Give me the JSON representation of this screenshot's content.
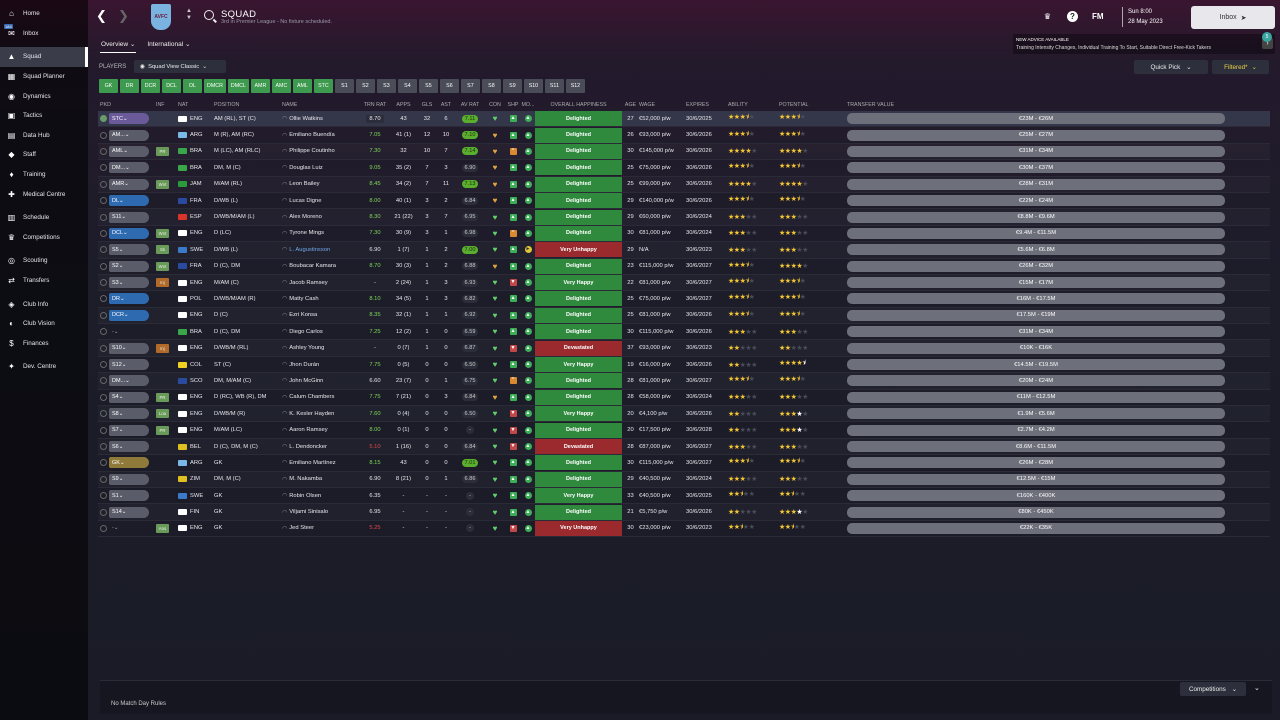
{
  "sidebar": {
    "items": [
      {
        "label": "Home",
        "icon": "home-icon",
        "glyph": "⌂"
      },
      {
        "label": "Inbox",
        "icon": "inbox-icon",
        "glyph": "✉"
      },
      {
        "label": "Squad",
        "icon": "shirt-icon",
        "glyph": "▲",
        "active": true
      },
      {
        "label": "Squad Planner",
        "icon": "planner-icon",
        "glyph": "▦"
      },
      {
        "label": "Dynamics",
        "icon": "dynamics-icon",
        "glyph": "◉"
      },
      {
        "label": "Tactics",
        "icon": "tactics-icon",
        "glyph": "▣"
      },
      {
        "label": "Data Hub",
        "icon": "data-icon",
        "glyph": "▤"
      },
      {
        "label": "Staff",
        "icon": "staff-icon",
        "glyph": "◆"
      },
      {
        "label": "Training",
        "icon": "training-icon",
        "glyph": "♦"
      },
      {
        "label": "Medical Centre",
        "icon": "medical-icon",
        "glyph": "✚"
      },
      {
        "label": "Schedule",
        "icon": "calendar-icon",
        "glyph": "▥"
      },
      {
        "label": "Competitions",
        "icon": "trophy-icon",
        "glyph": "♛"
      },
      {
        "label": "Scouting",
        "icon": "scouting-icon",
        "glyph": "◎"
      },
      {
        "label": "Transfers",
        "icon": "transfers-icon",
        "glyph": "⇄"
      },
      {
        "label": "Club Info",
        "icon": "club-info-icon",
        "glyph": "◈"
      },
      {
        "label": "Club Vision",
        "icon": "club-vision-icon",
        "glyph": "◐"
      },
      {
        "label": "Finances",
        "icon": "finances-icon",
        "glyph": "$"
      },
      {
        "label": "Dev. Centre",
        "icon": "dev-centre-icon",
        "glyph": "✦"
      }
    ],
    "inbox_badge": "184"
  },
  "header": {
    "title": "SQUAD",
    "subtitle": "3rd in Premier League - No fixture scheduled.",
    "club_initials": "AVFC",
    "time": "Sun 8:00",
    "date": "28 May 2023",
    "fm_label": "FM",
    "inbox_label": "Inbox"
  },
  "advice": {
    "title": "NEW ADVICE AVAILABLE",
    "text": "Training Intensity Changes, Individual Training To Start, Suitable Direct Free-Kick Takers",
    "badge": "5"
  },
  "tabs": [
    {
      "label": "Overview",
      "active": true
    },
    {
      "label": "International",
      "active": false
    }
  ],
  "players_label": "PLAYERS",
  "view_select": "Squad View Classic",
  "quick_pick": "Quick Pick",
  "filtered": "Filtered*",
  "position_filters": [
    {
      "label": "GK",
      "on": true
    },
    {
      "label": "DR",
      "on": true
    },
    {
      "label": "DCR",
      "on": true
    },
    {
      "label": "DCL",
      "on": true
    },
    {
      "label": "DL",
      "on": true
    },
    {
      "label": "DMCR",
      "on": true
    },
    {
      "label": "DMCL",
      "on": true
    },
    {
      "label": "AMR",
      "on": true
    },
    {
      "label": "AMC",
      "on": true
    },
    {
      "label": "AML",
      "on": true
    },
    {
      "label": "STC",
      "on": true
    },
    {
      "label": "S1",
      "on": false
    },
    {
      "label": "S2",
      "on": false
    },
    {
      "label": "S3",
      "on": false
    },
    {
      "label": "S4",
      "on": false
    },
    {
      "label": "S5",
      "on": false
    },
    {
      "label": "S6",
      "on": false
    },
    {
      "label": "S7",
      "on": false
    },
    {
      "label": "S8",
      "on": false
    },
    {
      "label": "S9",
      "on": false
    },
    {
      "label": "S10",
      "on": false
    },
    {
      "label": "S11",
      "on": false
    },
    {
      "label": "S12",
      "on": false
    }
  ],
  "columns": [
    "PKD",
    "INF",
    "NAT",
    "POSITION",
    "NAME",
    "TRN RAT",
    "APPS",
    "GLS",
    "AST",
    "AV RAT",
    "CON",
    "SHP",
    "MO...",
    "OVERALL HAPPINESS",
    "AGE",
    "WAGE",
    "EXPIRES",
    "ABILITY",
    "POTENTIAL",
    "TRANSFER VALUE"
  ],
  "players": [
    {
      "pkd": "STC",
      "pk": "stc",
      "inf": "",
      "nat": "ENG",
      "flag": "#ffffff",
      "pos": "AM (RL), ST (C)",
      "name": "Ollie Watkins",
      "trn": "8.70",
      "tb": true,
      "tc": "#e8e8ec",
      "apps": "43",
      "gls": "32",
      "ast": "6",
      "avr": "7.11",
      "ag": true,
      "con": "g",
      "shp": "g",
      "mor": "g",
      "hap": "Delighted",
      "hg": true,
      "age": "27",
      "wage": "€52,000 p/w",
      "exp": "30/6/2025",
      "abi": 3.5,
      "pot": 3.5,
      "val": "€23M - €26M",
      "sel": true
    },
    {
      "pkd": "AM...",
      "pk": "grey",
      "inf": "",
      "nat": "ARG",
      "flag": "#7ab8e8",
      "pos": "M (R), AM (RC)",
      "name": "Emiliano Buendía",
      "trn": "7.05",
      "tb": false,
      "tc": "#7ed957",
      "apps": "41 (1)",
      "gls": "12",
      "ast": "10",
      "avr": "7.10",
      "ag": true,
      "con": "o",
      "shp": "g",
      "mor": "g",
      "hap": "Delighted",
      "hg": true,
      "age": "26",
      "wage": "€93,000 p/w",
      "exp": "30/6/2026",
      "abi": 3.5,
      "pot": 3.5,
      "val": "€25M - €27M"
    },
    {
      "pkd": "AML",
      "pk": "grey",
      "inf": "PR",
      "nat": "BRA",
      "flag": "#3aa64a",
      "pos": "M (LC), AM (RLC)",
      "name": "Philippe Coutinho",
      "trn": "7.30",
      "tb": false,
      "tc": "#7ed957",
      "apps": "32",
      "gls": "10",
      "ast": "7",
      "avr": "7.14",
      "ag": true,
      "con": "o",
      "shp": "o",
      "mor": "g",
      "hap": "Delighted",
      "hg": true,
      "age": "30",
      "wage": "€145,000 p/w",
      "exp": "30/6/2026",
      "abi": 4,
      "pot": 4,
      "val": "€31M - €34M"
    },
    {
      "pkd": "DM...",
      "pk": "grey",
      "inf": "",
      "nat": "BRA",
      "flag": "#3aa64a",
      "pos": "DM, M (C)",
      "name": "Douglas Luiz",
      "trn": "9.05",
      "tb": false,
      "tc": "#7ed957",
      "apps": "35 (2)",
      "gls": "7",
      "ast": "3",
      "avr": "6.90",
      "ag": false,
      "con": "o",
      "shp": "g",
      "mor": "g",
      "hap": "Delighted",
      "hg": true,
      "age": "25",
      "wage": "€75,000 p/w",
      "exp": "30/6/2026",
      "abi": 3.5,
      "pot": 3.5,
      "val": "€30M - €37M"
    },
    {
      "pkd": "AMR",
      "pk": "grey",
      "inf": "Wnt",
      "nat": "JAM",
      "flag": "#2a9a3a",
      "pos": "M/AM (RL)",
      "name": "Leon Bailey",
      "trn": "8.45",
      "tb": false,
      "tc": "#7ed957",
      "apps": "34 (2)",
      "gls": "7",
      "ast": "11",
      "avr": "7.13",
      "ag": true,
      "con": "o",
      "shp": "g",
      "mor": "g",
      "hap": "Delighted",
      "hg": true,
      "age": "25",
      "wage": "€99,000 p/w",
      "exp": "30/6/2026",
      "abi": 4,
      "pot": 4,
      "val": "€28M - €31M"
    },
    {
      "pkd": "DL",
      "pk": "blue",
      "inf": "",
      "nat": "FRA",
      "flag": "#2a4aa0",
      "pos": "D/WB (L)",
      "name": "Lucas Digne",
      "trn": "8.00",
      "tb": false,
      "tc": "#7ed957",
      "apps": "40 (1)",
      "gls": "3",
      "ast": "2",
      "avr": "6.84",
      "ag": false,
      "con": "o",
      "shp": "g",
      "mor": "g",
      "hap": "Delighted",
      "hg": true,
      "age": "29",
      "wage": "€140,000 p/w",
      "exp": "30/6/2026",
      "abi": 3.5,
      "pot": 3.5,
      "val": "€22M - €24M"
    },
    {
      "pkd": "S11",
      "pk": "grey",
      "inf": "",
      "nat": "ESP",
      "flag": "#d8342a",
      "pos": "D/WB/M/AM (L)",
      "name": "Álex Moreno",
      "trn": "8.30",
      "tb": false,
      "tc": "#7ed957",
      "apps": "21 (22)",
      "gls": "3",
      "ast": "7",
      "avr": "6.95",
      "ag": false,
      "con": "g",
      "shp": "g",
      "mor": "g",
      "hap": "Delighted",
      "hg": true,
      "age": "29",
      "wage": "€60,000 p/w",
      "exp": "30/6/2024",
      "abi": 3,
      "pot": 3,
      "val": "€8.8M - €9.6M"
    },
    {
      "pkd": "DCL",
      "pk": "blue",
      "inf": "Wnt",
      "nat": "ENG",
      "flag": "#ffffff",
      "pos": "D (LC)",
      "name": "Tyrone Mings",
      "trn": "7.30",
      "tb": false,
      "tc": "#7ed957",
      "apps": "30 (9)",
      "gls": "3",
      "ast": "1",
      "avr": "6.98",
      "ag": false,
      "con": "g",
      "shp": "o",
      "mor": "g",
      "hap": "Delighted",
      "hg": true,
      "age": "30",
      "wage": "€81,000 p/w",
      "exp": "30/6/2024",
      "abi": 3,
      "pot": 3,
      "val": "€9.4M - €11.5M"
    },
    {
      "pkd": "S5",
      "pk": "grey",
      "inf": "Sk",
      "nat": "SWE",
      "flag": "#3a7ac8",
      "pos": "D/WB (L)",
      "name": "L. Augustinsson",
      "trn": "6.90",
      "tb": false,
      "tc": "#e8e8ec",
      "apps": "1 (7)",
      "gls": "1",
      "ast": "2",
      "avr": "7.00",
      "ag": true,
      "con": "g",
      "shp": "g",
      "mor": "y",
      "hap": "Very Unhappy",
      "hg": false,
      "age": "29",
      "wage": "N/A",
      "exp": "30/6/2023",
      "abi": 3,
      "pot": 3,
      "val": "€5.6M - €6.8M",
      "link": true
    },
    {
      "pkd": "S2",
      "pk": "grey",
      "inf": "Wnt",
      "nat": "FRA",
      "flag": "#2a4aa0",
      "pos": "D (C), DM",
      "name": "Boubacar Kamara",
      "trn": "8.70",
      "tb": false,
      "tc": "#7ed957",
      "apps": "30 (3)",
      "gls": "1",
      "ast": "2",
      "avr": "6.88",
      "ag": false,
      "con": "o",
      "shp": "g",
      "mor": "g",
      "hap": "Delighted",
      "hg": true,
      "age": "23",
      "wage": "€115,000 p/w",
      "exp": "30/6/2027",
      "abi": 3.5,
      "pot": 4,
      "val": "€26M - €32M"
    },
    {
      "pkd": "S3",
      "pk": "grey",
      "inf": "Inj",
      "inf_o": true,
      "nat": "ENG",
      "flag": "#ffffff",
      "pos": "M/AM (C)",
      "name": "Jacob Ramsey",
      "trn": "-",
      "tb": false,
      "tc": "#e8e8ec",
      "apps": "2 (24)",
      "gls": "1",
      "ast": "3",
      "avr": "6.93",
      "ag": false,
      "con": "g",
      "shp": "r",
      "mor": "g",
      "hap": "Very Happy",
      "hg": true,
      "age": "22",
      "wage": "€81,000 p/w",
      "exp": "30/6/2027",
      "abi": 3.5,
      "pot": 3.5,
      "val": "€15M - €17M"
    },
    {
      "pkd": "DR",
      "pk": "blue",
      "inf": "",
      "nat": "POL",
      "flag": "#ffffff",
      "pos": "D/WB/M/AM (R)",
      "name": "Matty Cash",
      "trn": "8.10",
      "tb": false,
      "tc": "#7ed957",
      "apps": "34 (5)",
      "gls": "1",
      "ast": "3",
      "avr": "6.82",
      "ag": false,
      "con": "g",
      "shp": "g",
      "mor": "g",
      "hap": "Delighted",
      "hg": true,
      "age": "25",
      "wage": "€75,000 p/w",
      "exp": "30/6/2027",
      "abi": 3.5,
      "pot": 3.5,
      "val": "€16M - €17.5M"
    },
    {
      "pkd": "DCR",
      "pk": "blue",
      "inf": "",
      "nat": "ENG",
      "flag": "#ffffff",
      "pos": "D (C)",
      "name": "Ezri Konsa",
      "trn": "8.35",
      "tb": false,
      "tc": "#7ed957",
      "apps": "32 (1)",
      "gls": "1",
      "ast": "1",
      "avr": "6.92",
      "ag": false,
      "con": "g",
      "shp": "g",
      "mor": "g",
      "hap": "Delighted",
      "hg": true,
      "age": "25",
      "wage": "€81,000 p/w",
      "exp": "30/6/2026",
      "abi": 3.5,
      "pot": 3.5,
      "val": "€17.5M - €19M"
    },
    {
      "pkd": "-",
      "pk": "empty",
      "inf": "",
      "nat": "BRA",
      "flag": "#3aa64a",
      "pos": "D (C), DM",
      "name": "Diego Carlos",
      "trn": "7.25",
      "tb": false,
      "tc": "#7ed957",
      "apps": "12 (2)",
      "gls": "1",
      "ast": "0",
      "avr": "6.59",
      "ag": false,
      "con": "g",
      "shp": "g",
      "mor": "g",
      "hap": "Delighted",
      "hg": true,
      "age": "30",
      "wage": "€115,000 p/w",
      "exp": "30/6/2026",
      "abi": 3,
      "pot": 3,
      "val": "€31M - €34M"
    },
    {
      "pkd": "S10",
      "pk": "grey",
      "inf": "Inj",
      "inf_o": true,
      "nat": "ENG",
      "flag": "#ffffff",
      "pos": "D/WB/M (RL)",
      "name": "Ashley Young",
      "trn": "-",
      "tb": false,
      "tc": "#e8e8ec",
      "apps": "0 (7)",
      "gls": "1",
      "ast": "0",
      "avr": "6.87",
      "ag": false,
      "con": "g",
      "shp": "r",
      "mor": "g",
      "hap": "Devastated",
      "hg": false,
      "age": "37",
      "wage": "€93,000 p/w",
      "exp": "30/6/2023",
      "abi": 2,
      "pot": 2,
      "val": "€10K - €16K"
    },
    {
      "pkd": "S12",
      "pk": "grey",
      "inf": "",
      "nat": "COL",
      "flag": "#f0d020",
      "pos": "ST (C)",
      "name": "Jhon Durán",
      "trn": "7.75",
      "tb": false,
      "tc": "#7ed957",
      "apps": "0 (5)",
      "gls": "0",
      "ast": "0",
      "avr": "6.50",
      "ag": false,
      "con": "g",
      "shp": "g",
      "mor": "g",
      "hap": "Very Happy",
      "hg": true,
      "age": "19",
      "wage": "€16,000 p/w",
      "exp": "30/6/2026",
      "abi": 2,
      "pot": 4.5,
      "pot_w": true,
      "val": "€14.5M - €19.5M"
    },
    {
      "pkd": "DM...",
      "pk": "grey",
      "inf": "",
      "nat": "SCO",
      "flag": "#2a4aa0",
      "pos": "DM, M/AM (C)",
      "name": "John McGinn",
      "trn": "6.60",
      "tb": false,
      "tc": "#e8e8ec",
      "apps": "23 (7)",
      "gls": "0",
      "ast": "1",
      "avr": "6.75",
      "ag": false,
      "con": "g",
      "shp": "o",
      "mor": "g",
      "hap": "Delighted",
      "hg": true,
      "age": "28",
      "wage": "€81,000 p/w",
      "exp": "30/6/2027",
      "abi": 3.5,
      "pot": 3.5,
      "val": "€20M - €24M"
    },
    {
      "pkd": "S4",
      "pk": "grey",
      "inf": "PR",
      "nat": "ENG",
      "flag": "#ffffff",
      "pos": "D (RC), WB (R), DM",
      "name": "Calum Chambers",
      "trn": "7.75",
      "tb": false,
      "tc": "#7ed957",
      "apps": "7 (21)",
      "gls": "0",
      "ast": "3",
      "avr": "6.84",
      "ag": false,
      "con": "o",
      "shp": "g",
      "mor": "g",
      "hap": "Delighted",
      "hg": true,
      "age": "28",
      "wage": "€58,000 p/w",
      "exp": "30/6/2024",
      "abi": 3,
      "pot": 3,
      "val": "€11M - €12.5M"
    },
    {
      "pkd": "S8",
      "pk": "grey",
      "inf": "Loa",
      "nat": "ENG",
      "flag": "#ffffff",
      "pos": "D/WB/M (R)",
      "name": "K. Kesler Hayden",
      "trn": "7.60",
      "tb": false,
      "tc": "#7ed957",
      "apps": "0 (4)",
      "gls": "0",
      "ast": "0",
      "avr": "6.50",
      "ag": false,
      "con": "g",
      "shp": "r",
      "mor": "g",
      "hap": "Very Happy",
      "hg": true,
      "age": "20",
      "wage": "€4,100 p/w",
      "exp": "30/6/2026",
      "abi": 2,
      "pot": 3,
      "pot_w": true,
      "val": "€1.9M - €5.6M"
    },
    {
      "pkd": "S7",
      "pk": "grey",
      "inf": "PR",
      "nat": "ENG",
      "flag": "#ffffff",
      "pos": "M/AM (LC)",
      "name": "Aaron Ramsey",
      "trn": "8.00",
      "tb": false,
      "tc": "#7ed957",
      "apps": "0 (1)",
      "gls": "0",
      "ast": "0",
      "avr": "-",
      "ag": false,
      "con": "g",
      "shp": "r",
      "mor": "g",
      "hap": "Delighted",
      "hg": true,
      "age": "20",
      "wage": "€17,500 p/w",
      "exp": "30/6/2028",
      "abi": 2,
      "pot": 3,
      "pot_w": true,
      "val": "€2.7M - €4.2M"
    },
    {
      "pkd": "S6",
      "pk": "grey",
      "inf": "",
      "nat": "BEL",
      "flag": "#e0c020",
      "pos": "D (C), DM, M (C)",
      "name": "L. Dendoncker",
      "trn": "5.10",
      "tb": false,
      "tc": "#e04848",
      "apps": "1 (16)",
      "gls": "0",
      "ast": "0",
      "avr": "6.84",
      "ag": false,
      "con": "g",
      "shp": "r",
      "mor": "g",
      "hap": "Devastated",
      "hg": false,
      "age": "28",
      "wage": "€87,000 p/w",
      "exp": "30/6/2027",
      "abi": 3,
      "pot": 3,
      "val": "€8.6M - €11.5M"
    },
    {
      "pkd": "GK",
      "pk": "gk",
      "inf": "",
      "nat": "ARG",
      "flag": "#7ab8e8",
      "pos": "GK",
      "name": "Emiliano Martínez",
      "trn": "8.15",
      "tb": false,
      "tc": "#7ed957",
      "apps": "43",
      "gls": "0",
      "ast": "0",
      "avr": "7.01",
      "ag": true,
      "con": "g",
      "shp": "g",
      "mor": "g",
      "hap": "Delighted",
      "hg": true,
      "age": "30",
      "wage": "€115,000 p/w",
      "exp": "30/6/2027",
      "abi": 3.5,
      "pot": 3.5,
      "val": "€26M - €28M"
    },
    {
      "pkd": "S9",
      "pk": "grey",
      "inf": "",
      "nat": "ZIM",
      "flag": "#e0c020",
      "pos": "DM, M (C)",
      "name": "M. Nakamba",
      "trn": "6.90",
      "tb": false,
      "tc": "#e8e8ec",
      "apps": "8 (21)",
      "gls": "0",
      "ast": "1",
      "avr": "6.86",
      "ag": false,
      "con": "g",
      "shp": "g",
      "mor": "g",
      "hap": "Delighted",
      "hg": true,
      "age": "29",
      "wage": "€40,500 p/w",
      "exp": "30/6/2024",
      "abi": 3,
      "pot": 3,
      "val": "€12.5M - €15M"
    },
    {
      "pkd": "S1",
      "pk": "grey",
      "inf": "",
      "nat": "SWE",
      "flag": "#3a7ac8",
      "pos": "GK",
      "name": "Robin Olsen",
      "trn": "6.35",
      "tb": false,
      "tc": "#e8e8ec",
      "apps": "-",
      "gls": "-",
      "ast": "-",
      "avr": "-",
      "ag": false,
      "con": "g",
      "shp": "g",
      "mor": "g",
      "hap": "Very Happy",
      "hg": true,
      "age": "33",
      "wage": "€40,500 p/w",
      "exp": "30/6/2025",
      "abi": 2.5,
      "pot": 2.5,
      "val": "€160K - €400K"
    },
    {
      "pkd": "S14",
      "pk": "grey",
      "inf": "",
      "nat": "FIN",
      "flag": "#ffffff",
      "pos": "GK",
      "name": "Viljami Sinisalo",
      "trn": "6.95",
      "tb": false,
      "tc": "#e8e8ec",
      "apps": "-",
      "gls": "-",
      "ast": "-",
      "avr": "-",
      "ag": false,
      "con": "g",
      "shp": "g",
      "mor": "g",
      "hap": "Delighted",
      "hg": true,
      "age": "21",
      "wage": "€5,750 p/w",
      "exp": "30/6/2026",
      "abi": 2,
      "pot": 3,
      "pot_w": true,
      "val": "€80K - €450K"
    },
    {
      "pkd": "-",
      "pk": "empty",
      "inf": "Ans",
      "nat": "ENG",
      "flag": "#ffffff",
      "pos": "GK",
      "name": "Jed Steer",
      "trn": "5.25",
      "tb": false,
      "tc": "#e04848",
      "apps": "-",
      "gls": "-",
      "ast": "-",
      "avr": "-",
      "ag": false,
      "con": "g",
      "shp": "r",
      "mor": "g",
      "hap": "Very Unhappy",
      "hg": false,
      "age": "30",
      "wage": "€23,000 p/w",
      "exp": "30/6/2023",
      "abi": 2.5,
      "pot": 2.5,
      "val": "€22K - €35K"
    }
  ],
  "footer": {
    "no_match_day": "No Match Day Rules",
    "competitions": "Competitions"
  }
}
